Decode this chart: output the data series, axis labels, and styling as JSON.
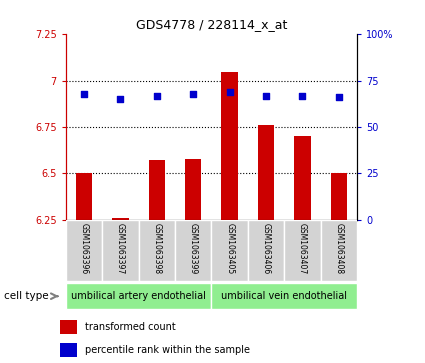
{
  "title": "GDS4778 / 228114_x_at",
  "samples": [
    "GSM1063396",
    "GSM1063397",
    "GSM1063398",
    "GSM1063399",
    "GSM1063405",
    "GSM1063406",
    "GSM1063407",
    "GSM1063408"
  ],
  "transformed_counts": [
    6.5,
    6.26,
    6.57,
    6.58,
    7.05,
    6.76,
    6.7,
    6.5
  ],
  "percentile_ranks": [
    68,
    65,
    67,
    68,
    69,
    67,
    67,
    66
  ],
  "bar_color": "#cc0000",
  "dot_color": "#0000cc",
  "ylim_left": [
    6.25,
    7.25
  ],
  "ylim_right": [
    0,
    100
  ],
  "yticks_left": [
    6.25,
    6.5,
    6.75,
    7.0,
    7.25
  ],
  "yticks_right": [
    0,
    25,
    50,
    75,
    100
  ],
  "ytick_labels_left": [
    "6.25",
    "6.5",
    "6.75",
    "7",
    "7.25"
  ],
  "ytick_labels_right": [
    "0",
    "25",
    "50",
    "75",
    "100%"
  ],
  "cell_type_groups": [
    {
      "label": "umbilical artery endothelial",
      "count": 4,
      "color": "#90ee90"
    },
    {
      "label": "umbilical vein endothelial",
      "count": 4,
      "color": "#90ee90"
    }
  ],
  "cell_type_label": "cell type",
  "legend_bar_label": "transformed count",
  "legend_dot_label": "percentile rank within the sample",
  "bar_color_legend": "#cc0000",
  "dot_color_legend": "#0000cc",
  "sample_bg_color": "#d3d3d3",
  "base_value": 6.25
}
